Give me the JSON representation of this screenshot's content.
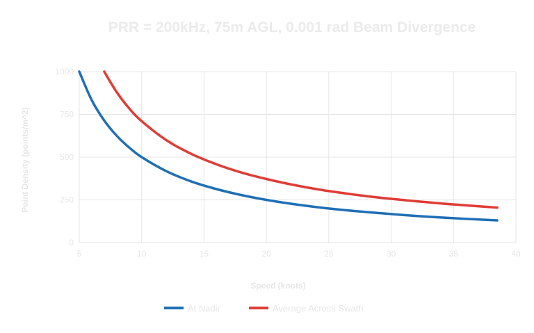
{
  "chart_data": {
    "type": "line",
    "title": "PRR = 200kHz, 75m AGL, 0.001 rad Beam Divergence",
    "xlabel": "Speed (knots)",
    "ylabel": "Point Density (points/m^2)",
    "xlim": [
      5,
      40
    ],
    "ylim": [
      0,
      1000
    ],
    "x_ticks": [
      5,
      10,
      15,
      20,
      25,
      30,
      35,
      40
    ],
    "y_ticks": [
      {
        "value": 0,
        "label": "0"
      },
      {
        "value": 250,
        "label": "250"
      },
      {
        "value": 500,
        "label": "500"
      },
      {
        "value": 750,
        "label": "750"
      },
      {
        "value": 1000,
        "label": "1000"
      }
    ],
    "grid": true,
    "legend_position": "bottom-center",
    "series": [
      {
        "name": "At Nadir",
        "color": "#1f6fb5",
        "x": [
          5,
          6,
          7,
          8,
          9,
          10,
          12,
          14,
          16,
          18,
          20,
          22,
          24,
          26,
          28,
          30,
          32,
          34,
          36,
          38.5
        ],
        "y": [
          1000,
          833,
          714,
          625,
          556,
          500,
          417,
          357,
          313,
          278,
          250,
          227,
          208,
          192,
          179,
          167,
          156,
          147,
          139,
          130
        ]
      },
      {
        "name": "Average Across Swath",
        "color": "#e03c36",
        "x": [
          7,
          8,
          9,
          10,
          12,
          14,
          16,
          18,
          20,
          22,
          24,
          26,
          28,
          30,
          32,
          34,
          36,
          38.5
        ],
        "y": [
          1000,
          880,
          785,
          710,
          598,
          518,
          458,
          410,
          372,
          340,
          313,
          291,
          272,
          256,
          242,
          229,
          218,
          205
        ]
      }
    ]
  }
}
